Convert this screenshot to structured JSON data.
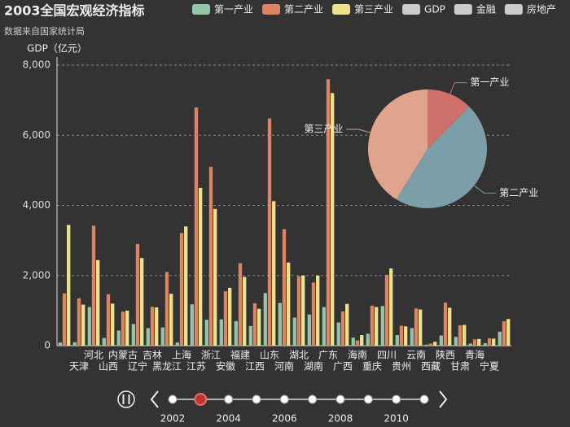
{
  "chart_data": [
    {
      "type": "bar",
      "title": "2003全国宏观经济指标",
      "subtitle": "数据来自国家统计局",
      "y_label": "GDP（亿元）",
      "categories": [
        null,
        "天津",
        "河北",
        "山西",
        "内蒙古",
        "辽宁",
        "吉林",
        "黑龙江",
        "上海",
        "江苏",
        "浙江",
        "安徽",
        "福建",
        "江西",
        "山东",
        "河南",
        "湖北",
        "湖南",
        "广东",
        "广西",
        "海南",
        "重庆",
        "四川",
        "贵州",
        "云南",
        "西藏",
        "陕西",
        "甘肃",
        "青海",
        "宁夏",
        null
      ],
      "series": [
        {
          "name": "第一产业",
          "color": "#93c6a6",
          "values": [
            90,
            100,
            1100,
            220,
            430,
            620,
            500,
            520,
            90,
            1180,
            740,
            750,
            700,
            560,
            1500,
            1220,
            800,
            890,
            1100,
            660,
            230,
            340,
            1130,
            300,
            500,
            30,
            290,
            250,
            60,
            70,
            400
          ]
        },
        {
          "name": "第二产业",
          "color": "#dd8462",
          "values": [
            1490,
            1350,
            3420,
            1470,
            970,
            2900,
            1110,
            2100,
            3210,
            6790,
            5100,
            1550,
            2350,
            1210,
            6480,
            3320,
            1980,
            1800,
            7600,
            980,
            150,
            1140,
            2020,
            570,
            1060,
            60,
            1230,
            580,
            180,
            210,
            700
          ]
        },
        {
          "name": "第三产业",
          "color": "#ede28c",
          "values": [
            3440,
            1170,
            2440,
            1200,
            1000,
            2500,
            1090,
            1480,
            3400,
            4500,
            3900,
            1650,
            1960,
            1050,
            4120,
            2370,
            2000,
            2000,
            7200,
            1190,
            300,
            1100,
            2200,
            550,
            1030,
            110,
            1080,
            590,
            190,
            200,
            760
          ]
        }
      ],
      "legend_inactive": [
        "GDP",
        "金融",
        "房地产"
      ],
      "ylim": [
        0,
        8000
      ],
      "yticks": [
        0,
        {
          "value": 2000,
          "label": "2,000"
        },
        {
          "value": 4000,
          "label": "4,000"
        },
        {
          "value": 6000,
          "label": "6,000"
        },
        {
          "value": 8000,
          "label": "8,000"
        }
      ],
      "grid": true,
      "timeline": {
        "labels": [
          "2002",
          null,
          "2004",
          null,
          "2006",
          null,
          "2008",
          null,
          "2010",
          null
        ],
        "current": 1
      }
    },
    {
      "type": "pie",
      "categories": [
        "第一产业",
        "第二产业",
        "第三产业"
      ],
      "values": [
        17370,
        65080,
        57770
      ],
      "colors": [
        "#d0706a",
        "#7b9ea8",
        "#e0a48c"
      ]
    }
  ]
}
